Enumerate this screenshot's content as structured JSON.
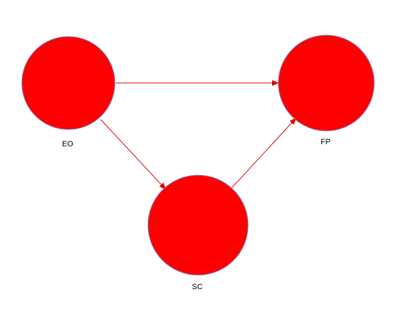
{
  "diagram": {
    "type": "path-model",
    "nodes": {
      "eo": {
        "id": "EO",
        "label": "EO",
        "fill": "#ff0000",
        "stroke": "#7f7fbf"
      },
      "fp": {
        "id": "FP",
        "label": "FP",
        "fill": "#ff0000",
        "stroke": "#7f7fbf"
      },
      "sc": {
        "id": "SC",
        "label": "SC",
        "fill": "#ff0000",
        "stroke": "#7f7fbf"
      }
    },
    "edges": [
      {
        "from": "EO",
        "to": "FP",
        "color": "#e00000"
      },
      {
        "from": "EO",
        "to": "SC",
        "color": "#e00000"
      },
      {
        "from": "SC",
        "to": "FP",
        "color": "#e00000"
      }
    ]
  }
}
